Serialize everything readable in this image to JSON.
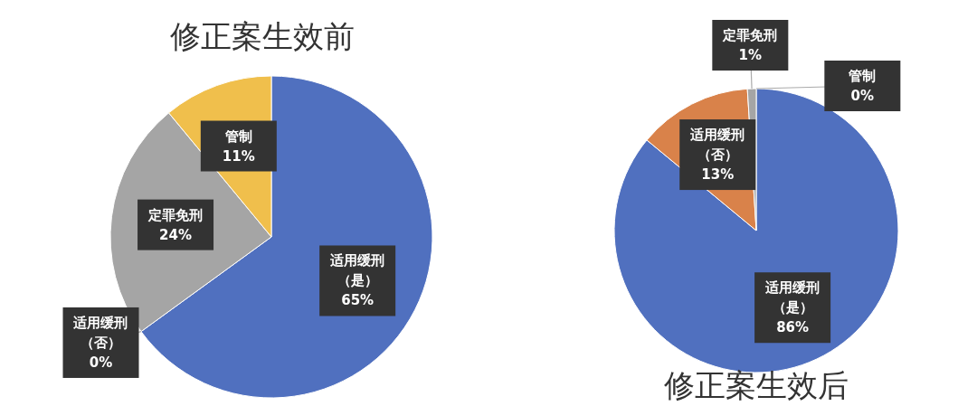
{
  "chart_data": [
    {
      "type": "pie",
      "title": "修正案生效前",
      "categories": [
        "适用缓刑（是）",
        "适用缓刑（否）",
        "定罪免刑",
        "管制"
      ],
      "values": [
        65,
        0,
        24,
        11
      ],
      "colors": [
        "#5070bf",
        "#d9824a",
        "#a5a5a5",
        "#f0bf4c"
      ],
      "value_labels": [
        "65%",
        "0%",
        "24%",
        "11%"
      ]
    },
    {
      "type": "pie",
      "title": "修正案生效后",
      "categories": [
        "适用缓刑（是）",
        "适用缓刑（否）",
        "定罪免刑",
        "管制"
      ],
      "values": [
        86,
        13,
        1,
        0
      ],
      "colors": [
        "#5070bf",
        "#d9824a",
        "#a5a5a5",
        "#f0bf4c"
      ],
      "value_labels": [
        "86%",
        "13%",
        "1%",
        "0%"
      ]
    }
  ]
}
